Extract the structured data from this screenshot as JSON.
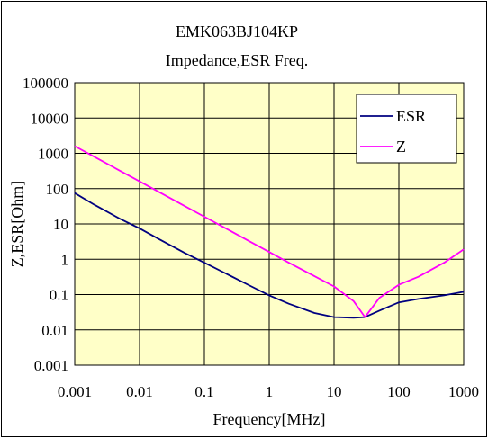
{
  "chart_data": {
    "type": "line",
    "title": "EMK063BJ104KP",
    "subtitle": "Impedance,ESR Freq.",
    "xlabel": "Frequency[MHz]",
    "ylabel": "Z,ESR[Ohm]",
    "x_scale": "log",
    "y_scale": "log",
    "xlim": [
      0.001,
      1000
    ],
    "ylim": [
      0.001,
      100000
    ],
    "x_ticks": [
      "0.001",
      "0.01",
      "0.1",
      "1",
      "10",
      "100",
      "1000"
    ],
    "y_ticks": [
      "0.001",
      "0.01",
      "0.1",
      "1",
      "10",
      "100",
      "1000",
      "10000",
      "100000"
    ],
    "grid": true,
    "plot_background": "#ffffc8",
    "legend": {
      "placement": "top-right"
    },
    "series": [
      {
        "name": "ESR",
        "color": "#000080",
        "points": [
          [
            0.001,
            75
          ],
          [
            0.002,
            35
          ],
          [
            0.005,
            14
          ],
          [
            0.01,
            7.5
          ],
          [
            0.02,
            3.7
          ],
          [
            0.05,
            1.5
          ],
          [
            0.1,
            0.8
          ],
          [
            0.2,
            0.42
          ],
          [
            0.5,
            0.18
          ],
          [
            1,
            0.095
          ],
          [
            2,
            0.055
          ],
          [
            5,
            0.03
          ],
          [
            10,
            0.023
          ],
          [
            20,
            0.022
          ],
          [
            30,
            0.023
          ],
          [
            50,
            0.035
          ],
          [
            100,
            0.06
          ],
          [
            200,
            0.075
          ],
          [
            500,
            0.095
          ],
          [
            1000,
            0.12
          ]
        ]
      },
      {
        "name": "Z",
        "color": "#ff00ff",
        "points": [
          [
            0.001,
            1600
          ],
          [
            0.002,
            800
          ],
          [
            0.005,
            320
          ],
          [
            0.01,
            160
          ],
          [
            0.02,
            80
          ],
          [
            0.05,
            32
          ],
          [
            0.1,
            16
          ],
          [
            0.2,
            8
          ],
          [
            0.5,
            3.2
          ],
          [
            1,
            1.6
          ],
          [
            2,
            0.8
          ],
          [
            5,
            0.33
          ],
          [
            10,
            0.17
          ],
          [
            20,
            0.065
          ],
          [
            30,
            0.023
          ],
          [
            50,
            0.08
          ],
          [
            100,
            0.19
          ],
          [
            200,
            0.32
          ],
          [
            500,
            0.8
          ],
          [
            1000,
            1.9
          ]
        ]
      }
    ]
  }
}
